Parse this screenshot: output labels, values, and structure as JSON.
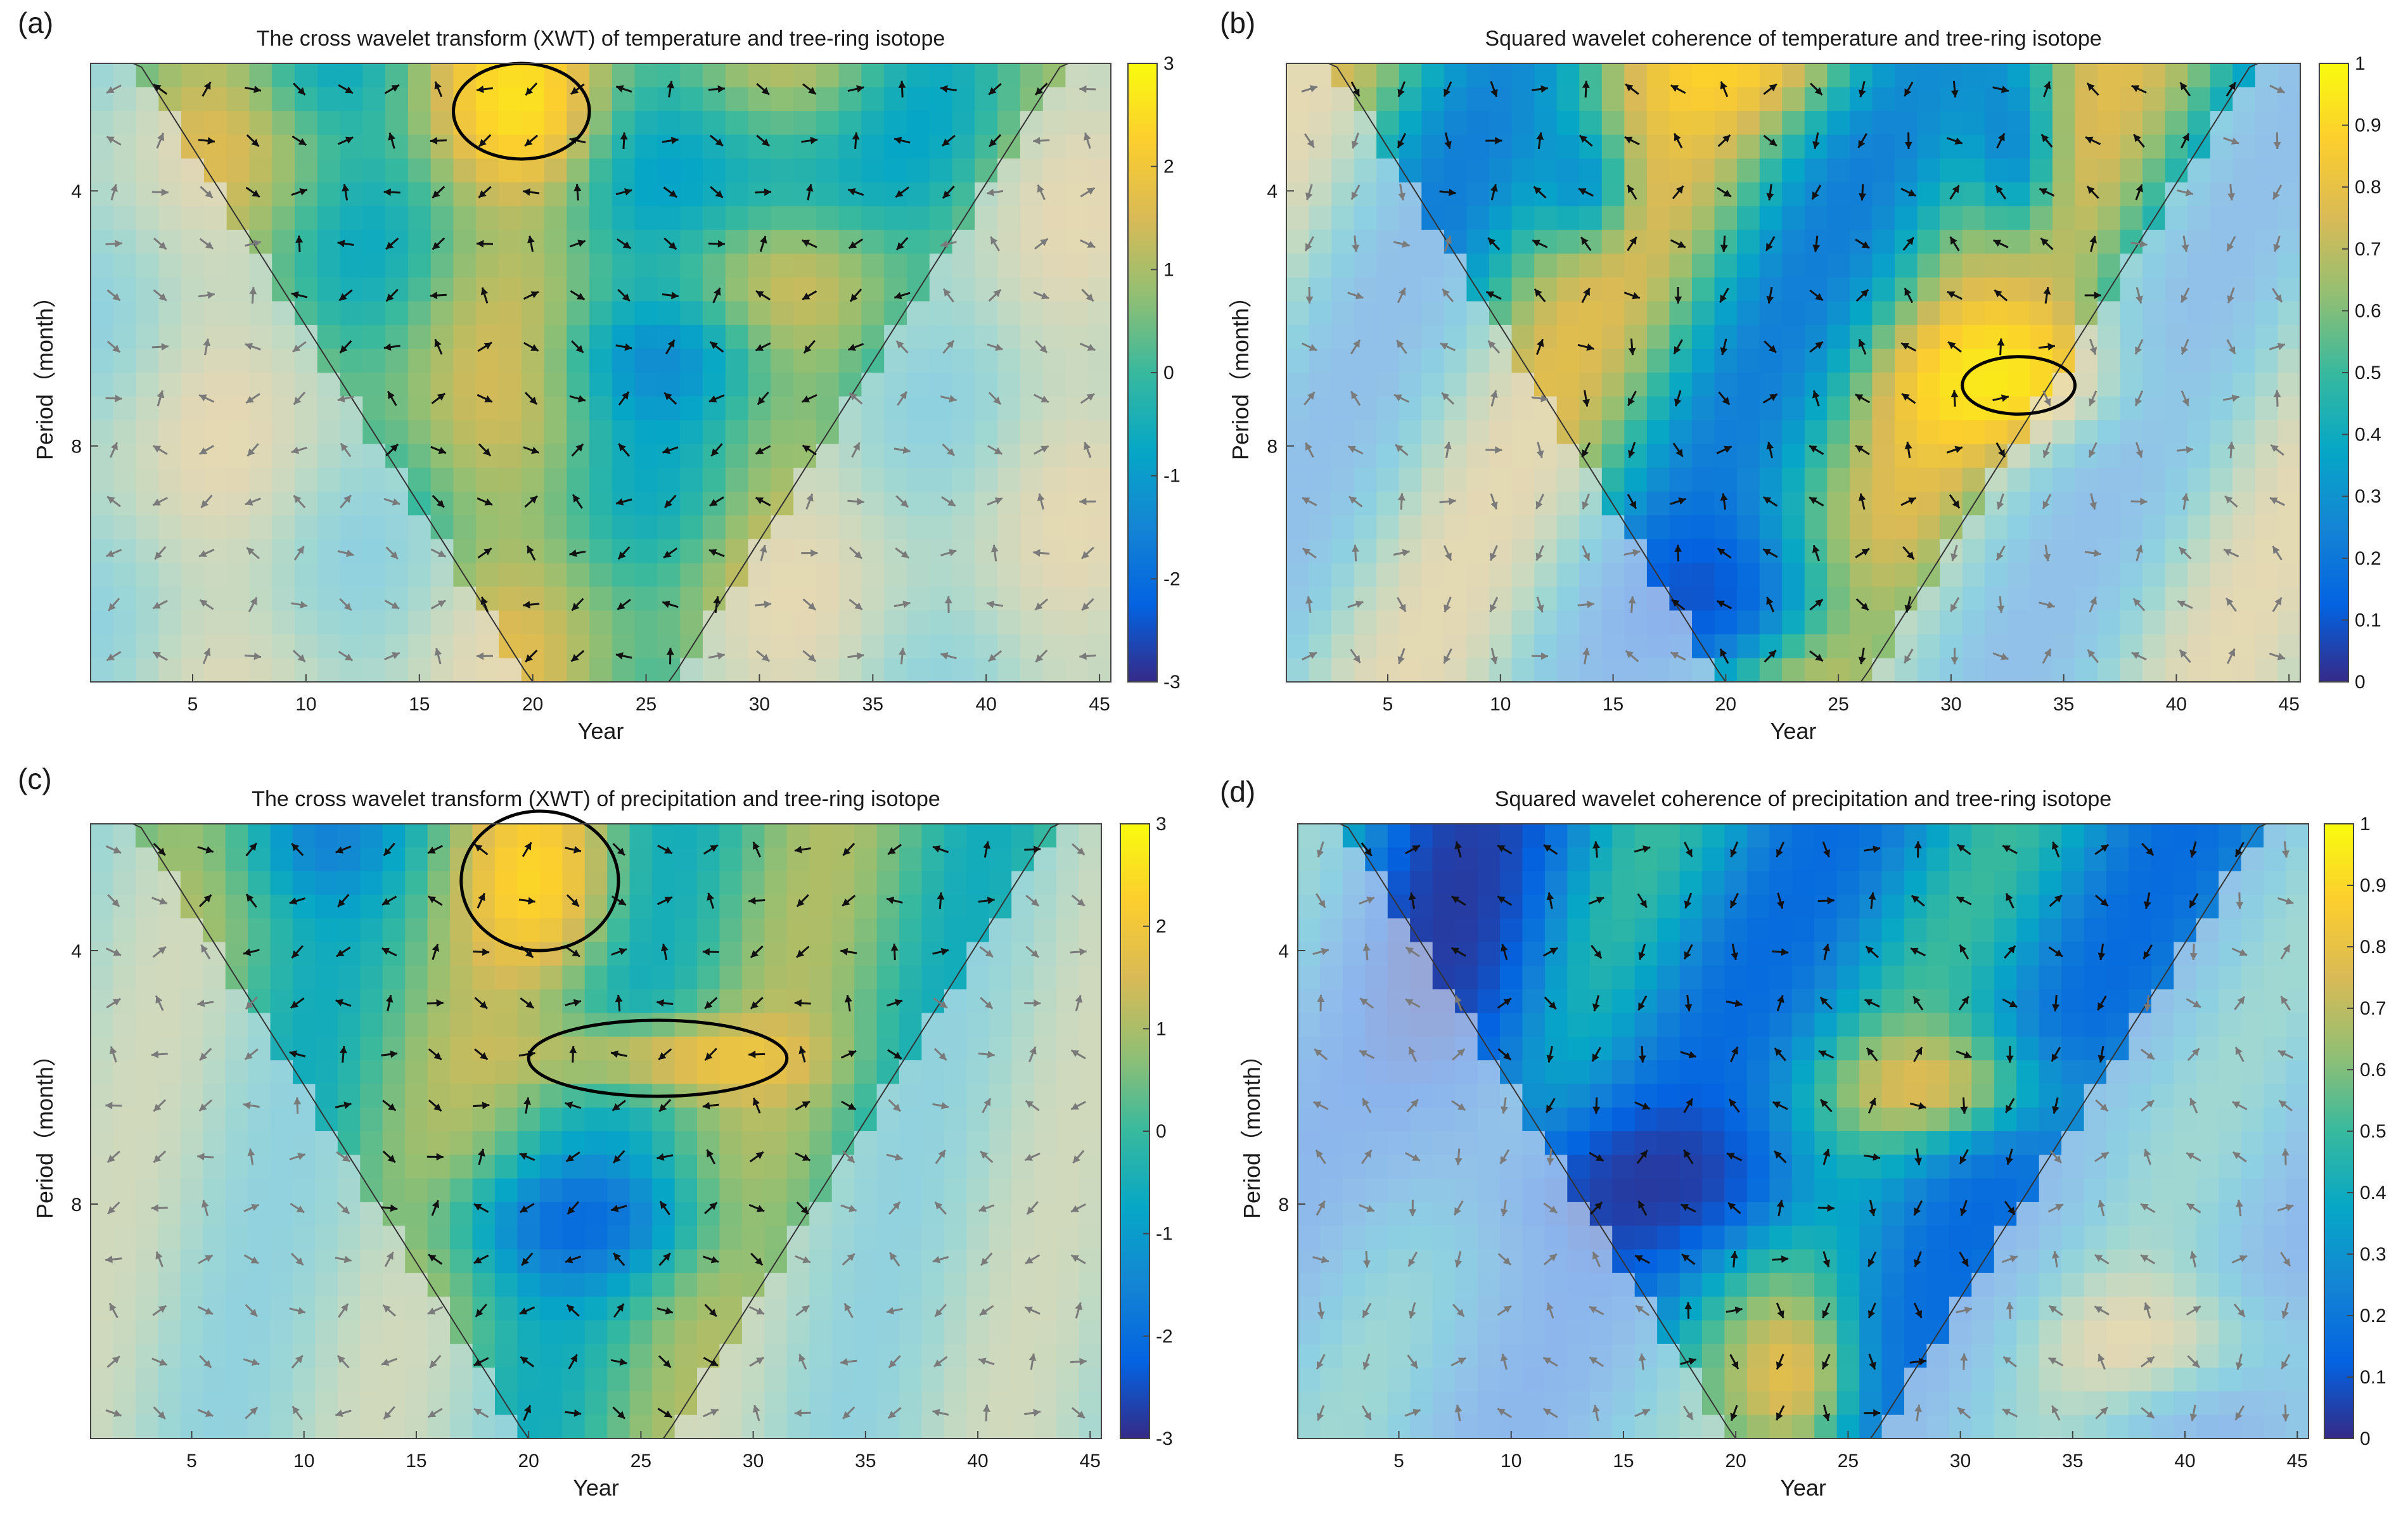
{
  "figure": {
    "colors": {
      "parula": [
        "#352a87",
        "#0363e1",
        "#1485d4",
        "#06a7c6",
        "#38b99e",
        "#92bf73",
        "#d9ba56",
        "#fcce2e",
        "#f9fb0e"
      ],
      "outside_coi_tint": "#e6ebf5",
      "inside_arrow": "#111111",
      "outside_arrow": "#7a7a7a"
    }
  },
  "chart_data": [
    {
      "panel_label": "(a)",
      "type": "heatmap",
      "title": "The cross wavelet transform (XWT) of temperature and tree-ring isotope",
      "xlabel": "Year",
      "ylabel": "Period（month）",
      "xlim": [
        0.5,
        45.5
      ],
      "x_ticks": [
        5,
        10,
        15,
        20,
        25,
        30,
        35,
        40,
        45
      ],
      "y_ticks": [
        4,
        8
      ],
      "colorbar": {
        "min": -3,
        "max": 3,
        "ticks": [
          "3",
          "2",
          "1",
          "0",
          "-1",
          "-2",
          "-3"
        ]
      },
      "significant_regions": [
        {
          "x_range": [
            16.5,
            22.5
          ],
          "period_range": [
            2.0,
            3.5
          ]
        }
      ]
    },
    {
      "panel_label": "(b)",
      "type": "heatmap",
      "title": "Squared wavelet coherence of temperature and tree-ring isotope",
      "xlabel": "Year",
      "ylabel": "Period（month）",
      "xlim": [
        0.5,
        45.5
      ],
      "x_ticks": [
        5,
        10,
        15,
        20,
        25,
        30,
        35,
        40,
        45
      ],
      "y_ticks": [
        4,
        8
      ],
      "colorbar": {
        "min": 0,
        "max": 1,
        "ticks": [
          "1",
          "0.9",
          "0.8",
          "0.7",
          "0.6",
          "0.5",
          "0.4",
          "0.3",
          "0.2",
          "0.1",
          "0"
        ]
      },
      "significant_regions": [
        {
          "x_range": [
            30.5,
            35.5
          ],
          "period_range": [
            6.6,
            7.5
          ]
        }
      ]
    },
    {
      "panel_label": "(c)",
      "type": "heatmap",
      "title": "The cross wavelet transform (XWT) of precipitation and tree-ring isotope",
      "xlabel": "Year",
      "ylabel": "Period（month）",
      "xlim": [
        0.5,
        45.5
      ],
      "x_ticks": [
        5,
        10,
        15,
        20,
        25,
        30,
        35,
        40,
        45
      ],
      "y_ticks": [
        4,
        8
      ],
      "colorbar": {
        "min": -3,
        "max": 3,
        "ticks": [
          "3",
          "2",
          "1",
          "0",
          "-1",
          "-2",
          "-3"
        ]
      },
      "significant_regions": [
        {
          "x_range": [
            17.0,
            24.0
          ],
          "period_range": [
            1.8,
            4.0
          ]
        },
        {
          "x_range": [
            20.0,
            31.5
          ],
          "period_range": [
            5.1,
            6.3
          ]
        }
      ]
    },
    {
      "panel_label": "(d)",
      "type": "heatmap",
      "title": "Squared wavelet coherence of precipitation and tree-ring isotope",
      "xlabel": "Year",
      "ylabel": "Period（month）",
      "xlim": [
        0.5,
        45.5
      ],
      "x_ticks": [
        5,
        10,
        15,
        20,
        25,
        30,
        35,
        40,
        45
      ],
      "y_ticks": [
        4,
        8
      ],
      "colorbar": {
        "min": 0,
        "max": 1,
        "ticks": [
          "1",
          "0.9",
          "0.8",
          "0.7",
          "0.6",
          "0.5",
          "0.4",
          "0.3",
          "0.2",
          "0.1",
          "0"
        ]
      },
      "significant_regions": []
    }
  ]
}
